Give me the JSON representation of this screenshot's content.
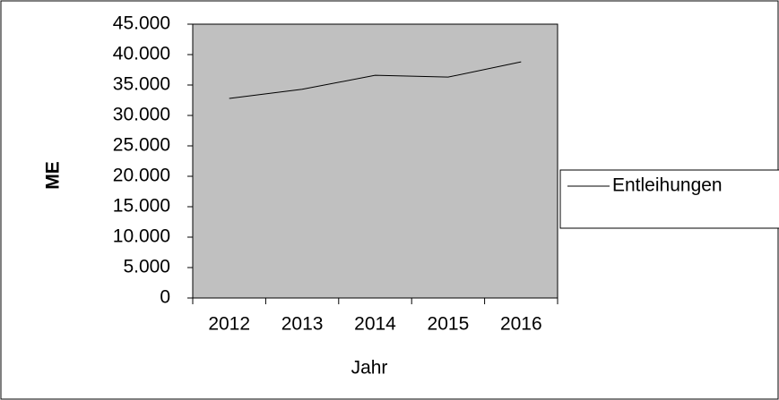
{
  "chart_data": {
    "type": "line",
    "x_label": "Jahr",
    "y_label": "ME",
    "categories": [
      "2012",
      "2013",
      "2014",
      "2015",
      "2016"
    ],
    "series": [
      {
        "name": "Entleihungen",
        "color": "#000000",
        "values": [
          32800,
          34300,
          36600,
          36300,
          38800
        ]
      }
    ],
    "ylim": [
      0,
      45000
    ],
    "yticks": [
      0,
      {
        "value": 5000,
        "label": "5.000"
      },
      {
        "value": 10000,
        "label": "10.000"
      },
      {
        "value": 15000,
        "label": "15.000"
      },
      {
        "value": 20000,
        "label": "20.000"
      },
      {
        "value": 25000,
        "label": "25.000"
      },
      {
        "value": 30000,
        "label": "30.000"
      },
      {
        "value": 35000,
        "label": "35.000"
      },
      {
        "value": 40000,
        "label": "40.000"
      },
      {
        "value": 45000,
        "label": "45.000"
      }
    ],
    "plot_background": "#c0c0c0",
    "legend": "right"
  }
}
